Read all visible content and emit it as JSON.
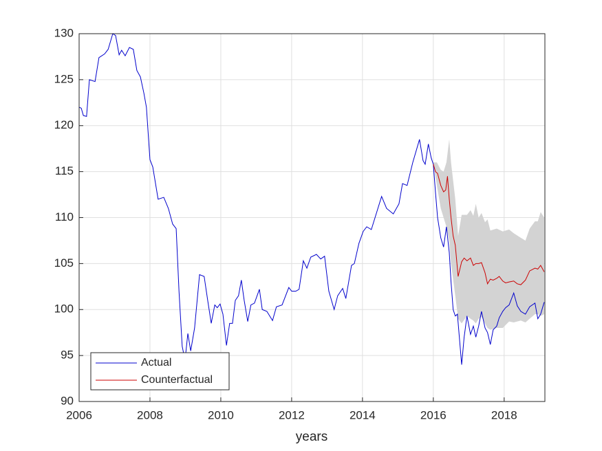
{
  "chart_data": {
    "type": "line",
    "xlabel": "years",
    "xlim": [
      2006,
      2019.15
    ],
    "xticks": [
      2006,
      2008,
      2010,
      2012,
      2014,
      2016,
      2018
    ],
    "ylim": [
      90,
      130
    ],
    "yticks": [
      90,
      95,
      100,
      105,
      110,
      115,
      120,
      125,
      130
    ],
    "grid": true,
    "legend": "lower left",
    "band": {
      "color": "#d3d3d3",
      "x": [
        2016.0,
        2016.1,
        2016.21,
        2016.29,
        2016.37,
        2016.45,
        2016.5,
        2016.62,
        2016.7,
        2016.8,
        2016.95,
        2017.05,
        2017.13,
        2017.2,
        2017.28,
        2017.36,
        2017.46,
        2017.53,
        2017.61,
        2017.79,
        2017.96,
        2018.14,
        2018.27,
        2018.47,
        2018.6,
        2018.72,
        2018.87,
        2018.95,
        2019.03,
        2019.13
      ],
      "upper": [
        116,
        116,
        115.2,
        115,
        116,
        118.5,
        116,
        112,
        108,
        110.3,
        110.3,
        110.8,
        110.2,
        111.5,
        110,
        110.5,
        109.5,
        109.8,
        108.6,
        108.8,
        108.5,
        108.7,
        108.3,
        107.8,
        107.5,
        108.8,
        109.6,
        109.6,
        110.6,
        110
      ],
      "lower": [
        116,
        113.5,
        111,
        110,
        109,
        107.5,
        105,
        101.5,
        99,
        98.5,
        99.3,
        99,
        98.8,
        98.5,
        99,
        99.2,
        98.5,
        98,
        97.8,
        98,
        98,
        98.7,
        98.6,
        98.8,
        98.6,
        99,
        99.5,
        99.5,
        99.3,
        99.5
      ]
    },
    "series": [
      {
        "name": "Actual",
        "color": "#0000cc",
        "x": [
          2006.0,
          2006.06,
          2006.12,
          2006.21,
          2006.29,
          2006.45,
          2006.56,
          2006.72,
          2006.82,
          2006.95,
          2007.03,
          2007.13,
          2007.2,
          2007.3,
          2007.42,
          2007.53,
          2007.63,
          2007.73,
          2007.83,
          2007.9,
          2008.0,
          2008.08,
          2008.23,
          2008.39,
          2008.52,
          2008.64,
          2008.74,
          2008.82,
          2008.91,
          2008.99,
          2009.07,
          2009.15,
          2009.26,
          2009.4,
          2009.53,
          2009.63,
          2009.73,
          2009.83,
          2009.9,
          2009.98,
          2010.06,
          2010.16,
          2010.25,
          2010.33,
          2010.41,
          2010.5,
          2010.58,
          2010.66,
          2010.76,
          2010.85,
          2010.95,
          2011.09,
          2011.17,
          2011.3,
          2011.46,
          2011.57,
          2011.73,
          2011.92,
          2012.0,
          2012.12,
          2012.21,
          2012.33,
          2012.43,
          2012.54,
          2012.7,
          2012.82,
          2012.93,
          2013.05,
          2013.2,
          2013.3,
          2013.44,
          2013.53,
          2013.69,
          2013.77,
          2013.9,
          2014.02,
          2014.12,
          2014.25,
          2014.54,
          2014.68,
          2014.87,
          2015.03,
          2015.13,
          2015.26,
          2015.42,
          2015.61,
          2015.71,
          2015.77,
          2015.86,
          2015.94,
          2016.0,
          2016.06,
          2016.12,
          2016.21,
          2016.29,
          2016.37,
          2016.45,
          2016.5,
          2016.56,
          2016.62,
          2016.68,
          2016.8,
          2016.87,
          2016.95,
          2017.05,
          2017.13,
          2017.2,
          2017.28,
          2017.36,
          2017.46,
          2017.53,
          2017.61,
          2017.69,
          2017.79,
          2017.86,
          2017.96,
          2018.04,
          2018.14,
          2018.27,
          2018.37,
          2018.47,
          2018.6,
          2018.72,
          2018.87,
          2018.95,
          2019.03,
          2019.13
        ],
        "values": [
          122,
          121.9,
          121.1,
          121,
          125,
          124.8,
          127.4,
          127.8,
          128.3,
          130,
          129.8,
          127.7,
          128.2,
          127.6,
          128.5,
          128.3,
          126,
          125.3,
          123.5,
          122,
          116.3,
          115.5,
          112,
          112.2,
          111,
          109.3,
          108.8,
          102,
          96,
          94.5,
          97.4,
          95.5,
          98,
          103.8,
          103.6,
          101,
          98.5,
          100.5,
          100.2,
          100.6,
          99.5,
          96.1,
          98.5,
          98.5,
          101,
          101.5,
          103.2,
          101,
          98.7,
          100.5,
          100.7,
          102.2,
          100,
          99.8,
          98.8,
          100.3,
          100.5,
          102.4,
          102,
          102,
          102.2,
          105.3,
          104.5,
          105.7,
          106,
          105.5,
          105.8,
          102,
          100,
          101.5,
          102.3,
          101.2,
          104.8,
          105,
          107.2,
          108.5,
          109,
          108.7,
          112.3,
          111,
          110.4,
          111.5,
          113.7,
          113.5,
          116,
          118.5,
          116.2,
          115.8,
          118,
          116.5,
          115.8,
          112.8,
          110,
          107.8,
          106.8,
          109,
          106.2,
          103,
          100,
          99.3,
          99.5,
          94,
          97,
          99.3,
          97.3,
          98.2,
          97,
          98.2,
          99.8,
          98,
          97.5,
          96.2,
          97.8,
          98.2,
          99.1,
          99.8,
          100.2,
          100.5,
          101.8,
          100.4,
          99.8,
          99.5,
          100.3,
          100.7,
          99,
          99.5,
          100.8
        ]
      },
      {
        "name": "Counterfactual",
        "color": "#cc0000",
        "x": [
          2016.0,
          2016.06,
          2016.12,
          2016.21,
          2016.29,
          2016.35,
          2016.4,
          2016.45,
          2016.5,
          2016.56,
          2016.62,
          2016.7,
          2016.8,
          2016.87,
          2016.95,
          2017.05,
          2017.13,
          2017.2,
          2017.28,
          2017.36,
          2017.46,
          2017.53,
          2017.61,
          2017.69,
          2017.79,
          2017.86,
          2017.96,
          2018.04,
          2018.14,
          2018.27,
          2018.37,
          2018.47,
          2018.6,
          2018.72,
          2018.87,
          2018.95,
          2019.03,
          2019.13
        ],
        "values": [
          115.8,
          115,
          114.8,
          113.5,
          112.8,
          113,
          114.5,
          112,
          110,
          108,
          107,
          103.6,
          105.2,
          105.6,
          105.3,
          105.6,
          104.8,
          105,
          105,
          105.1,
          104,
          102.8,
          103.3,
          103.2,
          103.4,
          103.6,
          103.1,
          102.9,
          103,
          103.1,
          102.8,
          102.7,
          103.2,
          104.2,
          104.5,
          104.4,
          104.8,
          104.1
        ]
      }
    ]
  }
}
